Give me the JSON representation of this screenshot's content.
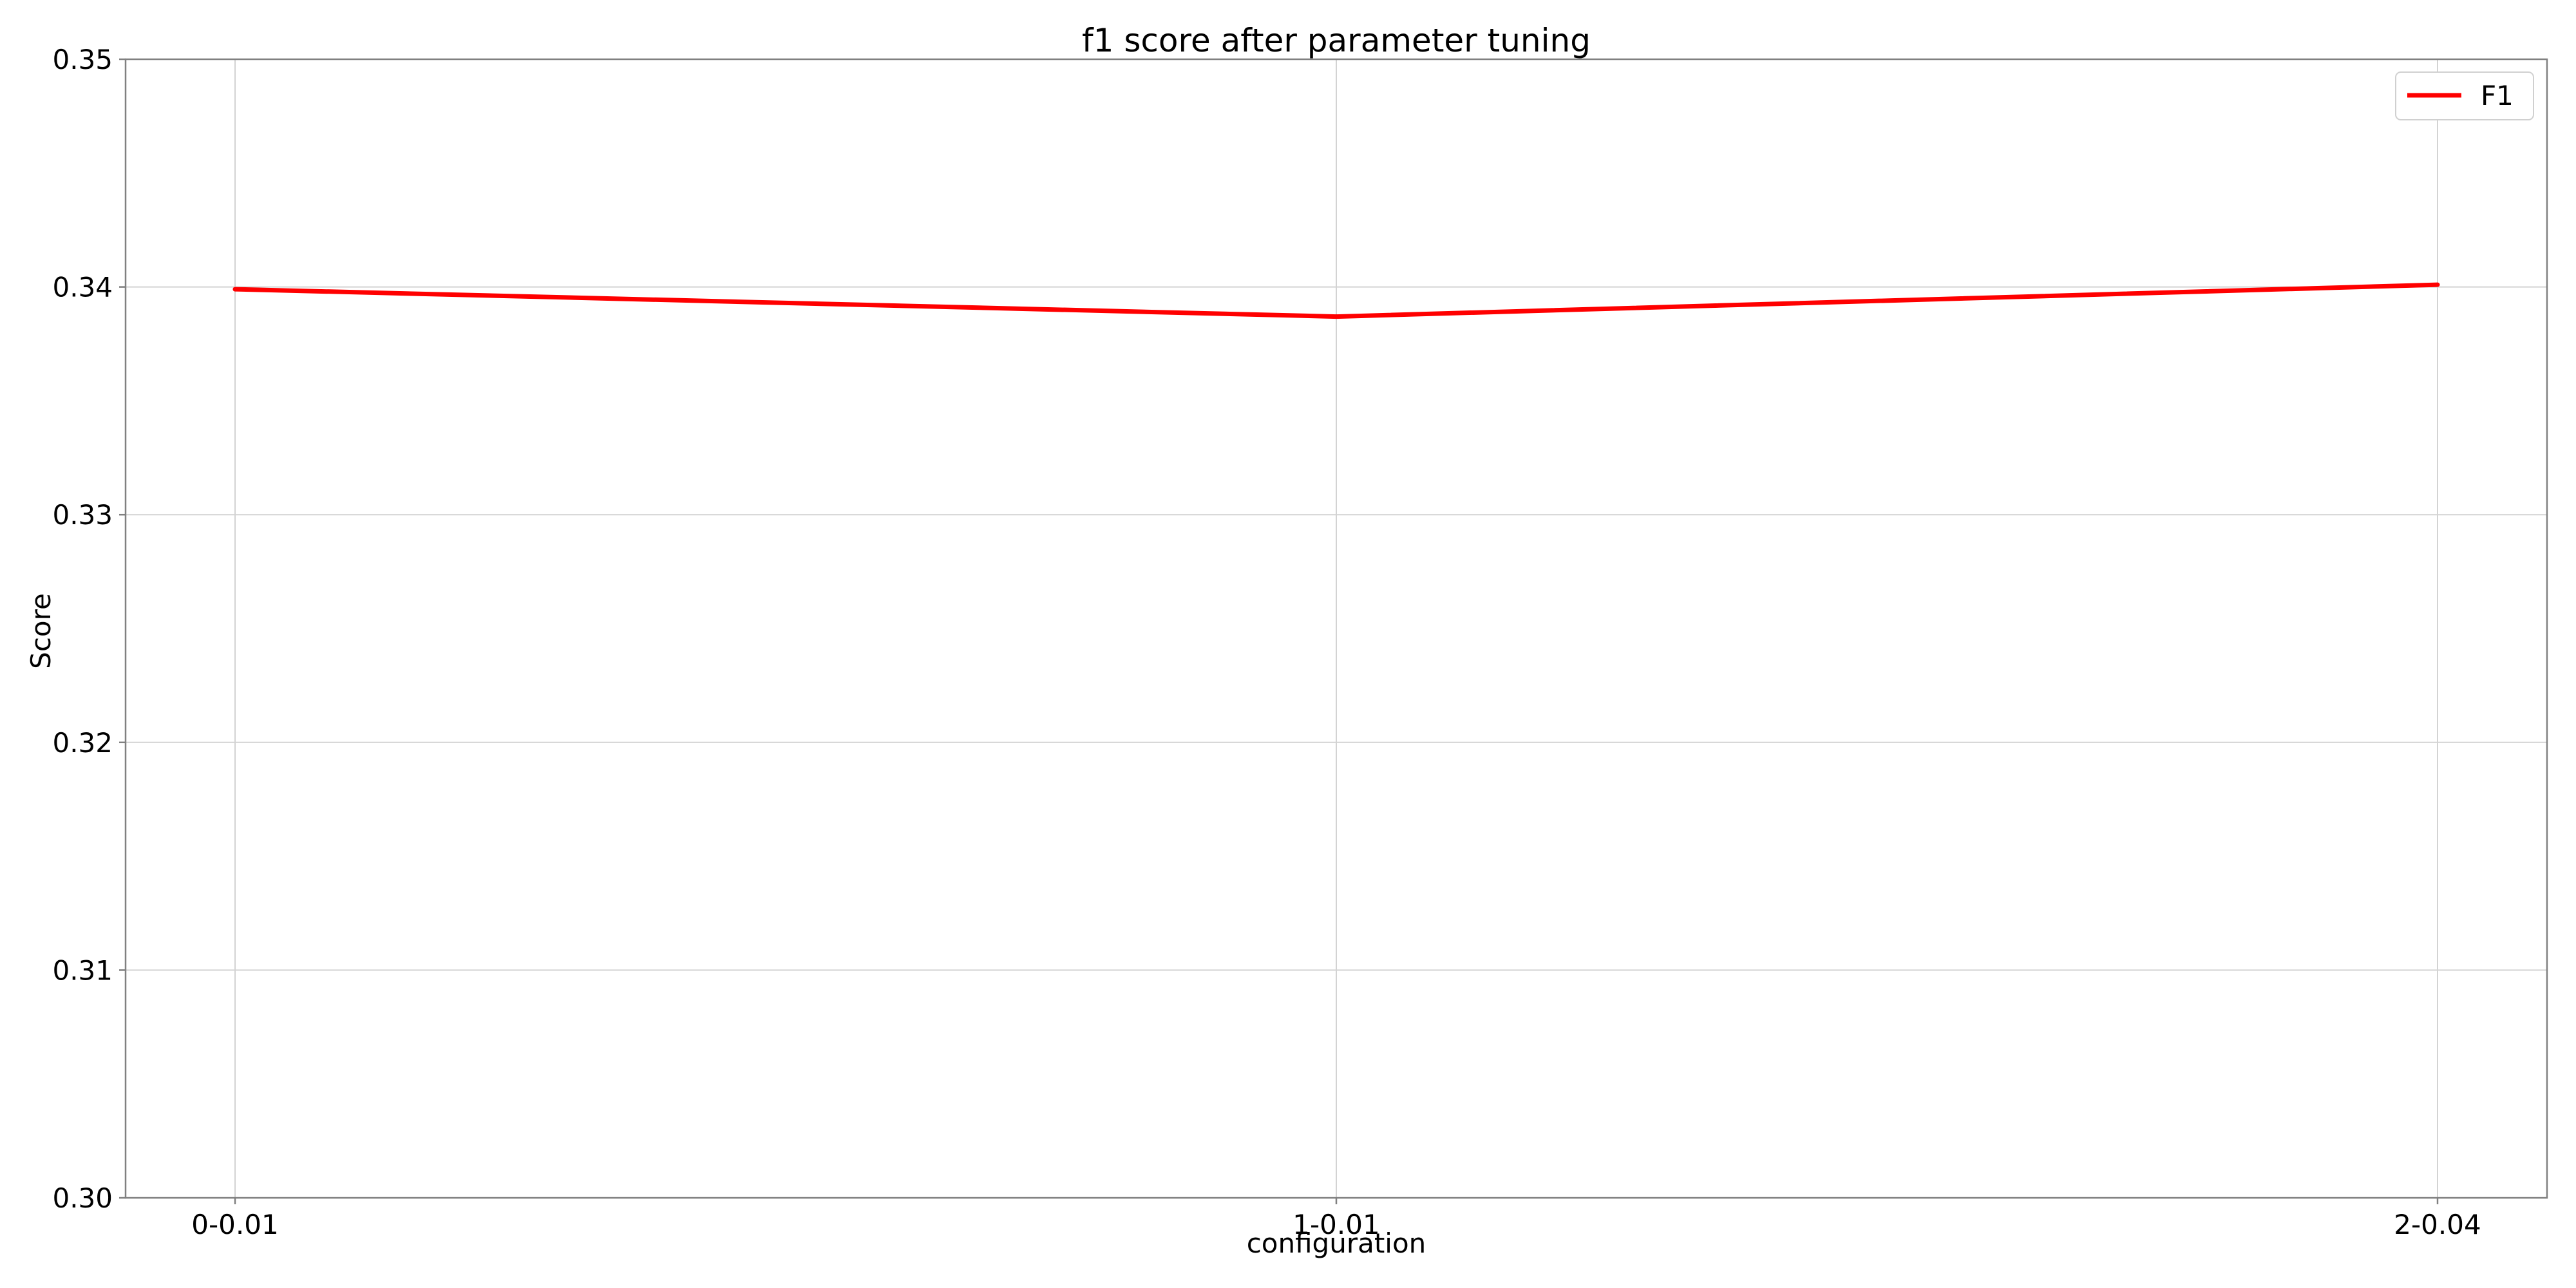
{
  "chart_data": {
    "type": "line",
    "title": "f1 score after parameter tuning",
    "xlabel": "configuration",
    "ylabel": "Score",
    "categories": [
      "0-0.01",
      "1-0.01",
      "2-0.04"
    ],
    "series": [
      {
        "name": "F1",
        "color": "#ff0000",
        "values": [
          0.3399,
          0.3387,
          0.3401
        ]
      }
    ],
    "ylim": [
      0.3,
      0.35
    ],
    "yticks": [
      "0.30",
      "0.31",
      "0.32",
      "0.33",
      "0.34",
      "0.35"
    ],
    "grid": true,
    "legend_position": "top-right"
  }
}
